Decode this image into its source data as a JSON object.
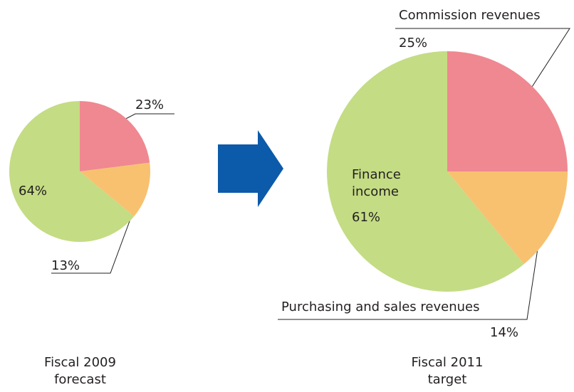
{
  "chart_data": [
    {
      "type": "pie",
      "title": "Fiscal 2009 forecast",
      "categories": [
        null,
        null,
        null
      ],
      "values": [
        23,
        13,
        64
      ],
      "value_labels": [
        "23%",
        "13%",
        "64%"
      ],
      "colors": [
        "#ef8890",
        "#f8c170",
        "#c4dc84"
      ]
    },
    {
      "type": "pie",
      "title": "Fiscal 2011 target",
      "categories": [
        "Commission revenues",
        "Purchasing and sales revenues",
        "Finance income"
      ],
      "values": [
        25,
        14,
        61
      ],
      "value_labels": [
        "25%",
        "14%",
        "61%"
      ],
      "colors": [
        "#ef8890",
        "#f8c170",
        "#c4dc84"
      ]
    }
  ]
}
